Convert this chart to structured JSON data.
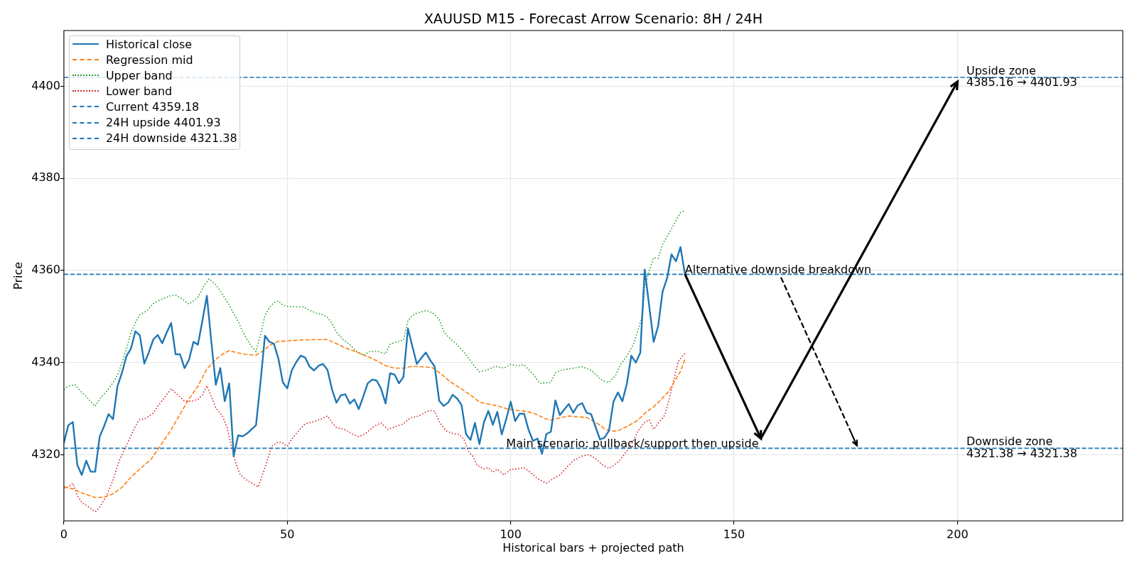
{
  "chart_data": {
    "type": "line",
    "title": "XAUUSD M15 - Forecast Arrow Scenario: 8H / 24H",
    "xlabel": "Historical bars + projected path",
    "ylabel": "Price",
    "x": [
      0,
      1,
      2,
      3,
      4,
      5,
      6,
      7,
      8,
      9,
      10,
      11,
      12,
      13,
      14,
      15,
      16,
      17,
      18,
      19,
      20,
      21,
      22,
      23,
      24,
      25,
      26,
      27,
      28,
      29,
      30,
      31,
      32,
      33,
      34,
      35,
      36,
      37,
      38,
      39,
      40,
      41,
      42,
      43,
      44,
      45,
      46,
      47,
      48,
      49,
      50,
      51,
      52,
      53,
      54,
      55,
      56,
      57,
      58,
      59,
      60,
      61,
      62,
      63,
      64,
      65,
      66,
      67,
      68,
      69,
      70,
      71,
      72,
      73,
      74,
      75,
      76,
      77,
      78,
      79,
      80,
      81,
      82,
      83,
      84,
      85,
      86,
      87,
      88,
      89,
      90,
      91,
      92,
      93,
      94,
      95,
      96,
      97,
      98,
      99,
      100,
      101,
      102,
      103,
      104,
      105,
      106,
      107,
      108,
      109,
      110,
      111,
      112,
      113,
      114,
      115,
      116,
      117,
      118,
      119,
      120,
      121,
      122,
      123,
      124,
      125,
      126,
      127,
      128,
      129,
      130,
      131,
      132,
      133,
      134,
      135,
      136,
      137,
      138,
      139
    ],
    "series": [
      {
        "name": "Historical close",
        "color": "#1f77b4",
        "values": [
          4322.6,
          4326.4,
          4327.1,
          4317.8,
          4315.6,
          4318.7,
          4316.3,
          4316.3,
          4323.9,
          4326.2,
          4328.8,
          4327.7,
          4334.9,
          4337.8,
          4341.4,
          4343.0,
          4346.8,
          4345.9,
          4339.8,
          4342.2,
          4345.0,
          4346.0,
          4344.2,
          4346.5,
          4348.6,
          4341.8,
          4341.8,
          4338.8,
          4340.6,
          4344.5,
          4343.9,
          4349.1,
          4354.5,
          4344.5,
          4335.2,
          4338.8,
          4331.6,
          4335.5,
          4319.7,
          4324.2,
          4324.0,
          4324.6,
          4325.5,
          4326.4,
          4335.7,
          4345.8,
          4344.5,
          4344.1,
          4340.9,
          4335.7,
          4334.4,
          4338.3,
          4340.1,
          4341.5,
          4341.1,
          4339.1,
          4338.3,
          4339.3,
          4339.7,
          4338.4,
          4334.2,
          4331.3,
          4332.9,
          4333.1,
          4331.1,
          4332.0,
          4329.9,
          4332.6,
          4335.5,
          4336.3,
          4336.1,
          4334.3,
          4331.1,
          4337.7,
          4337.4,
          4335.5,
          4336.9,
          4347.4,
          4343.5,
          4339.7,
          4341.0,
          4342.2,
          4340.5,
          4339.1,
          4331.7,
          4330.6,
          4331.3,
          4333.0,
          4332.2,
          4330.8,
          4324.5,
          4323.2,
          4326.9,
          4322.3,
          4327.0,
          4329.5,
          4326.5,
          4329.3,
          4324.4,
          4327.7,
          4331.5,
          4327.3,
          4328.9,
          4328.9,
          4325.4,
          4323.0,
          4323.5,
          4320.2,
          4324.5,
          4325.0,
          4331.8,
          4328.6,
          4329.8,
          4331.0,
          4329.1,
          4330.7,
          4331.2,
          4329.1,
          4328.8,
          4326.0,
          4323.3,
          4323.7,
          4325.2,
          4331.5,
          4333.5,
          4331.6,
          4335.4,
          4341.5,
          4340.0,
          4342.1,
          4360.2,
          4352.3,
          4344.5,
          4347.9,
          4355.4,
          4358.3,
          4363.5,
          4362.0,
          4365.1,
          4359.2
        ]
      },
      {
        "name": "Regression mid",
        "color": "#ff7f0e",
        "line_style": "dashed",
        "x": [
          0,
          2,
          4,
          7,
          9,
          11,
          13,
          15,
          17,
          19.5,
          21.5,
          24,
          26,
          28,
          30,
          32,
          34,
          35.5,
          37,
          38.5,
          40.5,
          43,
          44.5,
          46,
          48,
          50,
          53,
          56.5,
          59,
          61,
          63,
          65.5,
          67.5,
          70,
          72,
          74,
          76,
          78,
          80,
          82.5,
          84.5,
          86.5,
          89,
          91.5,
          93,
          95,
          97,
          99,
          101.5,
          103.5,
          105.5,
          107.5,
          109,
          111,
          113,
          115,
          117,
          118.5,
          120,
          121,
          122.5,
          124,
          126,
          128.5,
          130,
          132,
          133.5,
          135.5,
          137,
          138,
          139
        ],
        "values": [
          4313.0,
          4312.6,
          4311.7,
          4310.7,
          4310.8,
          4311.5,
          4312.9,
          4315.1,
          4316.9,
          4319.0,
          4321.8,
          4325.4,
          4328.8,
          4332.1,
          4334.9,
          4338.6,
          4340.7,
          4341.8,
          4342.6,
          4342.2,
          4341.8,
          4341.6,
          4342.5,
          4343.7,
          4344.6,
          4344.7,
          4344.9,
          4345.0,
          4345.0,
          4344.1,
          4343.2,
          4342.3,
          4341.5,
          4340.4,
          4339.3,
          4338.8,
          4338.8,
          4339.2,
          4339.1,
          4338.9,
          4337.5,
          4335.8,
          4334.3,
          4332.6,
          4331.4,
          4331.0,
          4330.6,
          4330.0,
          4329.6,
          4329.4,
          4328.9,
          4327.9,
          4327.5,
          4328.0,
          4328.4,
          4328.2,
          4328.1,
          4327.3,
          4326.4,
          4325.6,
          4325.1,
          4325.2,
          4326.1,
          4327.5,
          4329.0,
          4330.4,
          4331.8,
          4333.9,
          4336.5,
          4338.1,
          4340.7
        ]
      },
      {
        "name": "Upper band",
        "color": "#2ca02c",
        "line_style": "dotted",
        "x": [
          0,
          1,
          2.5,
          4,
          5,
          7,
          8,
          9.5,
          11,
          12,
          13,
          14,
          15,
          16,
          17,
          18.5,
          20,
          21,
          22,
          23.5,
          25,
          26.5,
          28,
          29,
          30,
          31.5,
          32.5,
          34,
          35,
          36,
          37,
          38,
          39,
          40,
          41,
          42,
          43,
          44,
          45,
          46,
          47,
          48,
          49,
          50,
          52,
          53.5,
          55,
          56.5,
          58,
          59,
          60,
          61,
          62.5,
          64,
          65.5,
          67,
          68.5,
          70,
          71,
          72,
          73,
          74.5,
          76,
          77,
          78,
          79,
          81,
          82.5,
          84,
          85,
          86.5,
          88,
          90,
          91,
          92,
          93,
          94.5,
          96.5,
          98.5,
          100,
          101.5,
          103,
          105,
          106.5,
          109,
          110,
          111.5,
          113.5,
          116,
          118,
          119.5,
          120.5,
          122,
          123.5,
          124.5,
          126,
          127.5,
          128.5,
          129.5,
          130,
          131,
          132,
          133,
          134,
          135.5,
          137,
          138,
          139
        ],
        "values": [
          4334.2,
          4334.9,
          4335.2,
          4333.5,
          4332.6,
          4330.5,
          4332.1,
          4333.7,
          4335.6,
          4337.3,
          4340.0,
          4342.9,
          4346.5,
          4348.6,
          4350.4,
          4351.2,
          4352.8,
          4353.4,
          4353.8,
          4354.4,
          4354.7,
          4353.8,
          4352.7,
          4353.4,
          4354.2,
          4356.9,
          4358.2,
          4356.9,
          4355.6,
          4354.0,
          4352.5,
          4350.7,
          4348.9,
          4346.8,
          4345.0,
          4343.5,
          4342.4,
          4346.0,
          4350.2,
          4352.0,
          4353.0,
          4353.4,
          4352.5,
          4352.2,
          4352.1,
          4352.1,
          4351.4,
          4350.7,
          4350.4,
          4349.8,
          4348.5,
          4346.6,
          4345.0,
          4343.9,
          4342.4,
          4341.6,
          4342.4,
          4342.5,
          4342.2,
          4341.9,
          4344.0,
          4344.5,
          4344.9,
          4349.0,
          4350.3,
          4350.7,
          4351.3,
          4350.8,
          4349.4,
          4346.8,
          4345.1,
          4343.9,
          4341.7,
          4340.4,
          4339.1,
          4338.0,
          4338.3,
          4339.2,
          4338.8,
          4339.6,
          4339.3,
          4339.5,
          4337.5,
          4335.5,
          4335.7,
          4337.8,
          4338.4,
          4338.7,
          4339.1,
          4338.3,
          4337.0,
          4336.1,
          4335.7,
          4337.3,
          4339.4,
          4341.4,
          4344.0,
          4347.1,
          4350.2,
          4356.4,
          4360.0,
          4362.8,
          4362.6,
          4365.7,
          4368.2,
          4370.8,
          4372.6,
          4373.0
        ]
      },
      {
        "name": "Lower band",
        "color": "#d62728",
        "line_style": "dotted",
        "x": [
          0,
          1,
          2,
          3,
          4,
          5,
          7,
          8,
          9.5,
          11,
          12.5,
          14,
          16,
          17,
          18,
          20,
          21,
          22.5,
          24,
          25.5,
          27,
          28.5,
          30,
          31,
          32,
          33,
          34,
          35.5,
          36.5,
          37.5,
          38.5,
          39.5,
          41,
          42.5,
          43.5,
          45,
          46.5,
          48,
          49,
          50,
          51,
          53,
          54,
          56,
          57.5,
          59,
          60,
          61,
          63,
          64.5,
          66,
          67.5,
          69.5,
          71,
          72.5,
          74.5,
          76,
          77.5,
          79.5,
          81,
          82,
          83,
          84,
          85.5,
          87,
          88.5,
          89.5,
          90.5,
          91.5,
          92.5,
          94,
          95,
          96,
          97,
          98.5,
          100,
          101.5,
          103,
          104.5,
          106,
          108,
          109.5,
          111,
          112.5,
          114,
          116,
          117.5,
          119,
          120.5,
          122,
          123.5,
          124.5,
          126,
          127.5,
          128.5,
          130,
          131,
          132,
          133,
          134.5,
          135.5,
          136.5,
          137.5,
          139
        ],
        "values": [
          4312.8,
          4313.0,
          4313.8,
          4311.2,
          4309.6,
          4309.0,
          4307.6,
          4308.6,
          4311.0,
          4314.5,
          4319.0,
          4322.0,
          4326.2,
          4327.7,
          4327.7,
          4329.0,
          4330.5,
          4332.4,
          4334.3,
          4333.0,
          4331.6,
          4331.6,
          4332.0,
          4333.0,
          4335.0,
          4332.6,
          4330.1,
          4328.4,
          4326.0,
          4321.8,
          4318.0,
          4315.6,
          4314.4,
          4313.6,
          4313.0,
          4317.2,
          4321.8,
          4322.8,
          4322.5,
          4321.8,
          4323.4,
          4325.7,
          4326.7,
          4327.2,
          4327.7,
          4328.4,
          4327.0,
          4325.9,
          4325.4,
          4324.5,
          4323.9,
          4324.6,
          4326.2,
          4326.9,
          4325.5,
          4326.2,
          4326.7,
          4328.0,
          4328.4,
          4329.3,
          4329.6,
          4329.4,
          4327.2,
          4325.2,
          4324.6,
          4324.4,
          4323.4,
          4320.8,
          4319.7,
          4317.7,
          4316.9,
          4317.2,
          4316.2,
          4316.9,
          4315.6,
          4316.8,
          4316.9,
          4317.2,
          4316.1,
          4314.8,
          4313.8,
          4314.8,
          4315.6,
          4317.2,
          4318.7,
          4319.7,
          4320.0,
          4319.2,
          4317.8,
          4317.0,
          4318.0,
          4318.9,
          4320.8,
          4323.1,
          4325.2,
          4327.0,
          4327.6,
          4325.5,
          4326.8,
          4328.6,
          4332.2,
          4336.3,
          4340.2,
          4342.0
        ]
      }
    ],
    "ref_lines": [
      {
        "axis": "y",
        "value": 4359.18,
        "label": "Current 4359.18",
        "color": "#1f77b4",
        "line_style": "dashed"
      },
      {
        "axis": "y",
        "value": 4401.93,
        "label": "24H upside 4401.93",
        "color": "#1f77b4",
        "line_style": "dashed"
      },
      {
        "axis": "y",
        "value": 4321.38,
        "label": "24H downside 4321.38",
        "color": "#1f77b4",
        "line_style": "dashed"
      }
    ],
    "annotations": [
      {
        "text": "Alternative downside breakdown",
        "x": 139,
        "y": 4359.18
      },
      {
        "text": "Main scenario: pullback/support then upside",
        "x": 99,
        "y": 4321.38
      },
      {
        "text": "Upside zone\n4385.16 → 4401.93",
        "x": 202,
        "y": 4401.93
      },
      {
        "text": "Downside zone\n4321.38 → 4321.38",
        "x": 202,
        "y": 4321.38
      }
    ],
    "xlim": [
      0,
      237
    ],
    "xticks": [
      0,
      50,
      100,
      150,
      200
    ],
    "ylim": [
      4305.6,
      4412.1
    ],
    "yticks": [
      4320,
      4340,
      4360,
      4380,
      4400
    ],
    "grid": true,
    "legend": "top left"
  }
}
